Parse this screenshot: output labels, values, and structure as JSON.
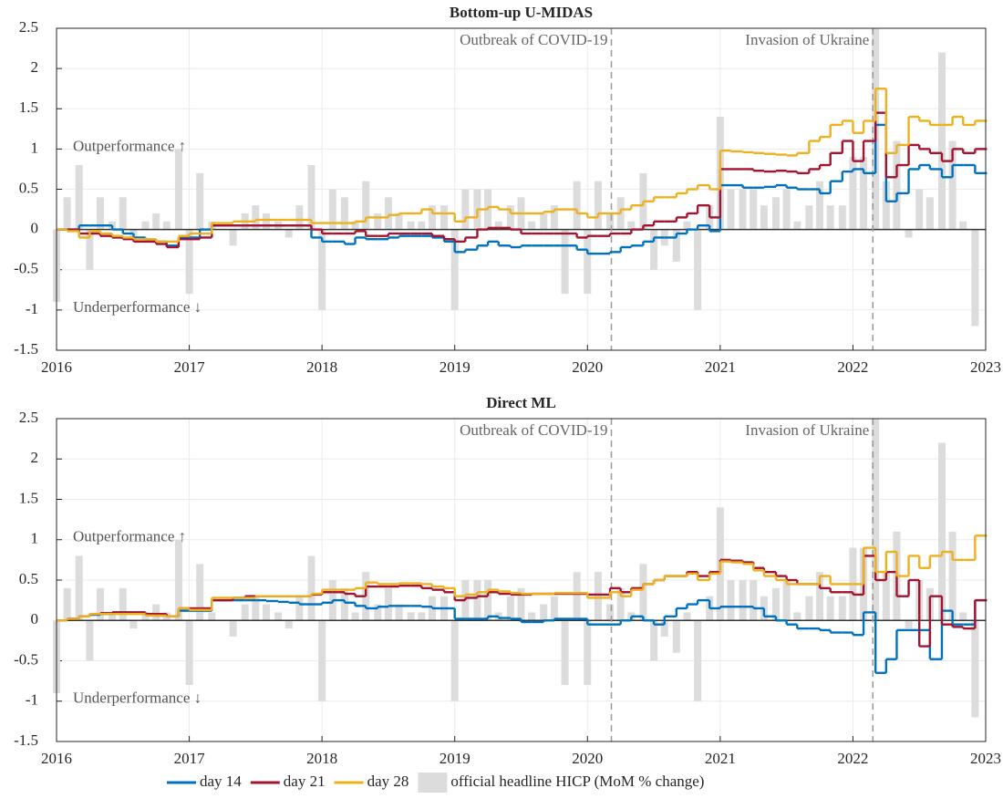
{
  "chart_data": [
    {
      "type": "line",
      "title": "Bottom-up U-MIDAS",
      "x": [
        2016,
        2016.08,
        2016.17,
        2016.25,
        2016.33,
        2016.42,
        2016.5,
        2016.58,
        2016.67,
        2016.75,
        2016.83,
        2016.92,
        2017,
        2017.08,
        2017.17,
        2017.25,
        2017.33,
        2017.42,
        2017.5,
        2017.58,
        2017.67,
        2017.75,
        2017.83,
        2017.92,
        2018,
        2018.08,
        2018.17,
        2018.25,
        2018.33,
        2018.42,
        2018.5,
        2018.58,
        2018.67,
        2018.75,
        2018.83,
        2018.92,
        2019,
        2019.08,
        2019.17,
        2019.25,
        2019.33,
        2019.42,
        2019.5,
        2019.58,
        2019.67,
        2019.75,
        2019.83,
        2019.92,
        2020,
        2020.08,
        2020.17,
        2020.25,
        2020.33,
        2020.42,
        2020.5,
        2020.58,
        2020.67,
        2020.75,
        2020.83,
        2020.92,
        2021,
        2021.08,
        2021.17,
        2021.25,
        2021.33,
        2021.42,
        2021.5,
        2021.58,
        2021.67,
        2021.75,
        2021.83,
        2021.92,
        2022,
        2022.08,
        2022.17,
        2022.25,
        2022.33,
        2022.42,
        2022.5,
        2022.58,
        2022.67,
        2022.75,
        2022.83,
        2022.92
      ],
      "series": [
        {
          "name": "official headline HICP (MoM % change)",
          "type": "bar",
          "color": "#dcdcdc",
          "values": [
            -0.9,
            0.4,
            0.8,
            -0.5,
            0.4,
            0.1,
            0.4,
            -0.1,
            0.1,
            0.2,
            0.1,
            1.0,
            -0.8,
            0.7,
            0.1,
            0.0,
            -0.2,
            0.2,
            0.3,
            0.2,
            0.1,
            -0.1,
            0.3,
            0.8,
            -1.0,
            0.5,
            0.4,
            0.1,
            0.6,
            0.2,
            0.4,
            0.2,
            0.1,
            0.1,
            0.3,
            0.3,
            -1.0,
            0.5,
            0.5,
            0.5,
            0.1,
            0.3,
            0.4,
            0.1,
            0.2,
            0.3,
            -0.8,
            0.6,
            -0.8,
            0.6,
            0.2,
            0.4,
            0.1,
            0.7,
            -0.5,
            -0.2,
            -0.4,
            0.1,
            -1.0,
            0.3,
            1.4,
            0.5,
            0.5,
            0.5,
            0.3,
            0.4,
            0.5,
            0.1,
            0.3,
            0.6,
            0.3,
            0.3,
            0.9,
            0.9,
            2.5,
            0.6,
            1.1,
            -0.1,
            0.5,
            0.4,
            2.2,
            1.1,
            0.1,
            -1.2
          ]
        },
        {
          "name": "day 14",
          "type": "line",
          "color": "#0072bd",
          "values": [
            0,
            0,
            0.05,
            0.05,
            0.05,
            0,
            -0.05,
            -0.1,
            -0.12,
            -0.15,
            -0.2,
            -0.1,
            -0.1,
            0,
            0.05,
            0.05,
            0.05,
            0.05,
            0.05,
            0.05,
            0.05,
            0.05,
            0.05,
            -0.1,
            -0.15,
            -0.15,
            -0.18,
            -0.1,
            -0.12,
            -0.12,
            -0.1,
            -0.08,
            -0.08,
            -0.08,
            -0.1,
            -0.15,
            -0.28,
            -0.25,
            -0.2,
            -0.15,
            -0.2,
            -0.22,
            -0.2,
            -0.2,
            -0.2,
            -0.2,
            -0.2,
            -0.25,
            -0.3,
            -0.3,
            -0.28,
            -0.22,
            -0.2,
            -0.15,
            -0.1,
            -0.1,
            -0.05,
            0,
            0.05,
            -0.02,
            0.55,
            0.55,
            0.52,
            0.52,
            0.53,
            0.55,
            0.52,
            0.5,
            0.5,
            0.45,
            0.6,
            0.72,
            0.75,
            0.7,
            1.3,
            0.35,
            0.45,
            0.75,
            0.8,
            0.75,
            0.65,
            0.8,
            0.8,
            0.7
          ]
        },
        {
          "name": "day 21",
          "type": "line",
          "color": "#a2142f",
          "values": [
            0,
            0,
            -0.05,
            -0.05,
            -0.08,
            -0.1,
            -0.12,
            -0.15,
            -0.15,
            -0.18,
            -0.22,
            -0.12,
            -0.12,
            -0.1,
            0.05,
            0.05,
            0.05,
            0.05,
            0.05,
            0.05,
            0.05,
            0.05,
            0.05,
            0,
            -0.05,
            -0.05,
            -0.05,
            -0.02,
            -0.08,
            -0.08,
            -0.05,
            -0.05,
            -0.05,
            -0.05,
            -0.08,
            -0.12,
            -0.15,
            -0.1,
            0,
            0.02,
            0.02,
            0,
            -0.05,
            -0.05,
            -0.05,
            -0.05,
            -0.05,
            -0.1,
            -0.08,
            -0.08,
            -0.05,
            -0.05,
            0,
            0.05,
            0.1,
            0.1,
            0.15,
            0.2,
            0.3,
            0.15,
            0.75,
            0.75,
            0.75,
            0.73,
            0.72,
            0.73,
            0.72,
            0.7,
            0.75,
            0.8,
            0.95,
            1.1,
            0.85,
            1.1,
            1.45,
            0.65,
            0.8,
            1.05,
            1.0,
            0.95,
            0.85,
            1.0,
            0.95,
            1.0
          ]
        },
        {
          "name": "day 28",
          "type": "line",
          "color": "#edb120",
          "values": [
            0,
            -0.02,
            -0.1,
            -0.02,
            -0.05,
            -0.08,
            -0.1,
            -0.12,
            -0.12,
            -0.15,
            -0.15,
            -0.08,
            -0.05,
            -0.05,
            0.08,
            0.08,
            0.1,
            0.1,
            0.12,
            0.12,
            0.12,
            0.12,
            0.12,
            0.08,
            0.08,
            0.08,
            0.08,
            0.1,
            0.15,
            0.15,
            0.18,
            0.2,
            0.2,
            0.25,
            0.2,
            0.2,
            0.1,
            0.15,
            0.25,
            0.28,
            0.25,
            0.2,
            0.2,
            0.2,
            0.22,
            0.25,
            0.25,
            0.2,
            0.15,
            0.2,
            0.2,
            0.25,
            0.3,
            0.35,
            0.4,
            0.4,
            0.45,
            0.5,
            0.55,
            0.5,
            0.98,
            0.97,
            0.96,
            0.95,
            0.94,
            0.93,
            0.92,
            0.95,
            1.1,
            1.15,
            1.3,
            1.35,
            1.2,
            1.35,
            1.75,
            0.95,
            1.05,
            1.4,
            1.35,
            1.3,
            1.3,
            1.4,
            1.3,
            1.35
          ]
        }
      ],
      "xlim": [
        2016,
        2023
      ],
      "xticks": [
        2016,
        2017,
        2018,
        2019,
        2020,
        2021,
        2022,
        2023
      ],
      "ylim": [
        -1.5,
        2.5
      ],
      "yticks": [
        -1.5,
        -1,
        -0.5,
        0,
        0.5,
        1,
        1.5,
        2,
        2.5
      ],
      "grid": true,
      "vlines": [
        {
          "x": 2020.18,
          "label": "Outbreak of COVID-19"
        },
        {
          "x": 2022.15,
          "label": "Invasion of Ukraine"
        }
      ],
      "notes": [
        {
          "y": 1,
          "label": "Outperformance ↑"
        },
        {
          "y": -1,
          "label": "Underperformance ↓"
        }
      ]
    },
    {
      "type": "line",
      "title": "Direct ML",
      "x": [
        2016,
        2016.08,
        2016.17,
        2016.25,
        2016.33,
        2016.42,
        2016.5,
        2016.58,
        2016.67,
        2016.75,
        2016.83,
        2016.92,
        2017,
        2017.08,
        2017.17,
        2017.25,
        2017.33,
        2017.42,
        2017.5,
        2017.58,
        2017.67,
        2017.75,
        2017.83,
        2017.92,
        2018,
        2018.08,
        2018.17,
        2018.25,
        2018.33,
        2018.42,
        2018.5,
        2018.58,
        2018.67,
        2018.75,
        2018.83,
        2018.92,
        2019,
        2019.08,
        2019.17,
        2019.25,
        2019.33,
        2019.42,
        2019.5,
        2019.58,
        2019.67,
        2019.75,
        2019.83,
        2019.92,
        2020,
        2020.08,
        2020.17,
        2020.25,
        2020.33,
        2020.42,
        2020.5,
        2020.58,
        2020.67,
        2020.75,
        2020.83,
        2020.92,
        2021,
        2021.08,
        2021.17,
        2021.25,
        2021.33,
        2021.42,
        2021.5,
        2021.58,
        2021.67,
        2021.75,
        2021.83,
        2021.92,
        2022,
        2022.08,
        2022.17,
        2022.25,
        2022.33,
        2022.42,
        2022.5,
        2022.58,
        2022.67,
        2022.75,
        2022.83,
        2022.92
      ],
      "series": [
        {
          "name": "official headline HICP (MoM % change)",
          "type": "bar",
          "color": "#dcdcdc",
          "values": [
            -0.9,
            0.4,
            0.8,
            -0.5,
            0.4,
            0.1,
            0.4,
            -0.1,
            0.1,
            0.2,
            0.1,
            1.0,
            -0.8,
            0.7,
            0.1,
            0.0,
            -0.2,
            0.2,
            0.3,
            0.2,
            0.1,
            -0.1,
            0.3,
            0.8,
            -1.0,
            0.5,
            0.4,
            0.1,
            0.6,
            0.2,
            0.4,
            0.2,
            0.1,
            0.1,
            0.3,
            0.3,
            -1.0,
            0.5,
            0.5,
            0.5,
            0.1,
            0.3,
            0.4,
            0.1,
            0.2,
            0.3,
            -0.8,
            0.6,
            -0.8,
            0.6,
            0.2,
            0.4,
            0.1,
            0.7,
            -0.5,
            -0.2,
            -0.4,
            0.1,
            -1.0,
            0.3,
            1.4,
            0.5,
            0.5,
            0.5,
            0.3,
            0.4,
            0.5,
            0.1,
            0.3,
            0.6,
            0.3,
            0.3,
            0.9,
            0.9,
            2.5,
            0.6,
            1.1,
            -0.1,
            0.5,
            0.4,
            2.2,
            1.1,
            0.1,
            -1.2
          ]
        },
        {
          "name": "day 14",
          "type": "line",
          "color": "#0072bd",
          "values": [
            0,
            0.02,
            0.05,
            0.07,
            0.08,
            0.1,
            0.1,
            0.1,
            0.08,
            0.06,
            0.05,
            0.12,
            0.12,
            0.12,
            0.25,
            0.25,
            0.25,
            0.25,
            0.25,
            0.24,
            0.23,
            0.22,
            0.2,
            0.2,
            0.22,
            0.25,
            0.22,
            0.18,
            0.15,
            0.17,
            0.18,
            0.18,
            0.18,
            0.17,
            0.15,
            0.15,
            0.02,
            0.02,
            0.02,
            0.05,
            0.03,
            0.02,
            -0.02,
            -0.02,
            0,
            0.02,
            0.02,
            0.02,
            -0.05,
            -0.05,
            -0.05,
            0,
            0.05,
            0,
            -0.05,
            0.05,
            0.15,
            0.2,
            0.25,
            0.15,
            0.17,
            0.17,
            0.17,
            0.15,
            0.05,
            0,
            -0.05,
            -0.1,
            -0.1,
            -0.12,
            -0.15,
            -0.15,
            -0.18,
            0.1,
            -0.65,
            -0.48,
            -0.12,
            -0.12,
            -0.12,
            -0.48,
            0.12,
            -0.05,
            -0.05,
            0.25
          ]
        },
        {
          "name": "day 21",
          "type": "line",
          "color": "#a2142f",
          "values": [
            0,
            0.02,
            0.05,
            0.08,
            0.09,
            0.1,
            0.1,
            0.1,
            0.08,
            0.08,
            0.05,
            0.15,
            0.15,
            0.15,
            0.25,
            0.25,
            0.28,
            0.3,
            0.3,
            0.3,
            0.3,
            0.3,
            0.3,
            0.32,
            0.35,
            0.35,
            0.33,
            0.3,
            0.42,
            0.42,
            0.42,
            0.43,
            0.43,
            0.4,
            0.38,
            0.35,
            0.25,
            0.28,
            0.3,
            0.35,
            0.33,
            0.32,
            0.32,
            0.33,
            0.33,
            0.33,
            0.33,
            0.33,
            0.32,
            0.32,
            0.4,
            0.35,
            0.4,
            0.45,
            0.5,
            0.55,
            0.55,
            0.6,
            0.55,
            0.6,
            0.75,
            0.74,
            0.72,
            0.65,
            0.6,
            0.55,
            0.5,
            0.45,
            0.45,
            0.4,
            0.35,
            0.35,
            0.32,
            0.8,
            0.5,
            0.6,
            0.3,
            0.5,
            -0.32,
            0.3,
            -0.05,
            -0.08,
            -0.1,
            0.25
          ]
        },
        {
          "name": "day 28",
          "type": "line",
          "color": "#edb120",
          "values": [
            0,
            0.02,
            0.05,
            0.08,
            0.08,
            0.08,
            0.08,
            0.08,
            0.06,
            0.06,
            0.05,
            0.15,
            0.13,
            0.13,
            0.28,
            0.28,
            0.28,
            0.28,
            0.3,
            0.3,
            0.3,
            0.3,
            0.3,
            0.33,
            0.38,
            0.38,
            0.38,
            0.4,
            0.47,
            0.45,
            0.45,
            0.46,
            0.46,
            0.45,
            0.42,
            0.4,
            0.3,
            0.32,
            0.35,
            0.38,
            0.36,
            0.34,
            0.33,
            0.33,
            0.33,
            0.34,
            0.34,
            0.34,
            0.28,
            0.28,
            0.35,
            0.3,
            0.38,
            0.45,
            0.5,
            0.55,
            0.55,
            0.58,
            0.5,
            0.58,
            0.73,
            0.72,
            0.7,
            0.62,
            0.55,
            0.5,
            0.45,
            0.45,
            0.45,
            0.55,
            0.45,
            0.45,
            0.45,
            0.9,
            0.6,
            0.85,
            0.55,
            0.8,
            0.65,
            0.8,
            0.85,
            0.75,
            0.75,
            1.05
          ]
        }
      ],
      "xlim": [
        2016,
        2023
      ],
      "xticks": [
        2016,
        2017,
        2018,
        2019,
        2020,
        2021,
        2022,
        2023
      ],
      "ylim": [
        -1.5,
        2.5
      ],
      "yticks": [
        -1.5,
        -1,
        -0.5,
        0,
        0.5,
        1,
        1.5,
        2,
        2.5
      ],
      "grid": true,
      "vlines": [
        {
          "x": 2020.18,
          "label": "Outbreak of COVID-19"
        },
        {
          "x": 2022.15,
          "label": "Invasion of Ukraine"
        }
      ],
      "notes": [
        {
          "y": 1,
          "label": "Outperformance ↑"
        },
        {
          "y": -1,
          "label": "Underperformance ↓"
        }
      ]
    }
  ]
}
